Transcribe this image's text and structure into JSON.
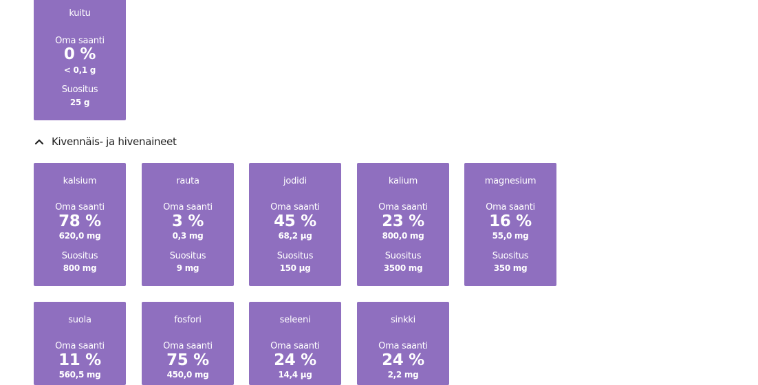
{
  "top_card": {
    "name": "kuitu",
    "oma_label": "Oma saanti",
    "pct": "0 %",
    "amount": "< 0,1 g",
    "rec_label": "Suositus",
    "rec_value": "25 g"
  },
  "section": {
    "title": "Kivennäis- ja hivenaineet",
    "icon": "chevron-up-icon"
  },
  "cards_row1": [
    {
      "name": "kalsium",
      "oma_label": "Oma saanti",
      "pct": "78 %",
      "amount": "620,0 mg",
      "rec_label": "Suositus",
      "rec_value": "800 mg"
    },
    {
      "name": "rauta",
      "oma_label": "Oma saanti",
      "pct": "3 %",
      "amount": "0,3 mg",
      "rec_label": "Suositus",
      "rec_value": "9 mg"
    },
    {
      "name": "jodidi",
      "oma_label": "Oma saanti",
      "pct": "45 %",
      "amount": "68,2 µg",
      "rec_label": "Suositus",
      "rec_value": "150 µg"
    },
    {
      "name": "kalium",
      "oma_label": "Oma saanti",
      "pct": "23 %",
      "amount": "800,0 mg",
      "rec_label": "Suositus",
      "rec_value": "3500 mg"
    },
    {
      "name": "magnesium",
      "oma_label": "Oma saanti",
      "pct": "16 %",
      "amount": "55,0 mg",
      "rec_label": "Suositus",
      "rec_value": "350 mg"
    }
  ],
  "cards_row2": [
    {
      "name": "suola",
      "oma_label": "Oma saanti",
      "pct": "11 %",
      "amount": "560,5 mg"
    },
    {
      "name": "fosfori",
      "oma_label": "Oma saanti",
      "pct": "75 %",
      "amount": "450,0 mg"
    },
    {
      "name": "seleeni",
      "oma_label": "Oma saanti",
      "pct": "24 %",
      "amount": "14,4 µg"
    },
    {
      "name": "sinkki",
      "oma_label": "Oma saanti",
      "pct": "24 %",
      "amount": "2,2 mg"
    }
  ],
  "colors": {
    "card_bg": "#8f6fbf",
    "card_text": "#ffffff",
    "heading_text": "#222222"
  }
}
